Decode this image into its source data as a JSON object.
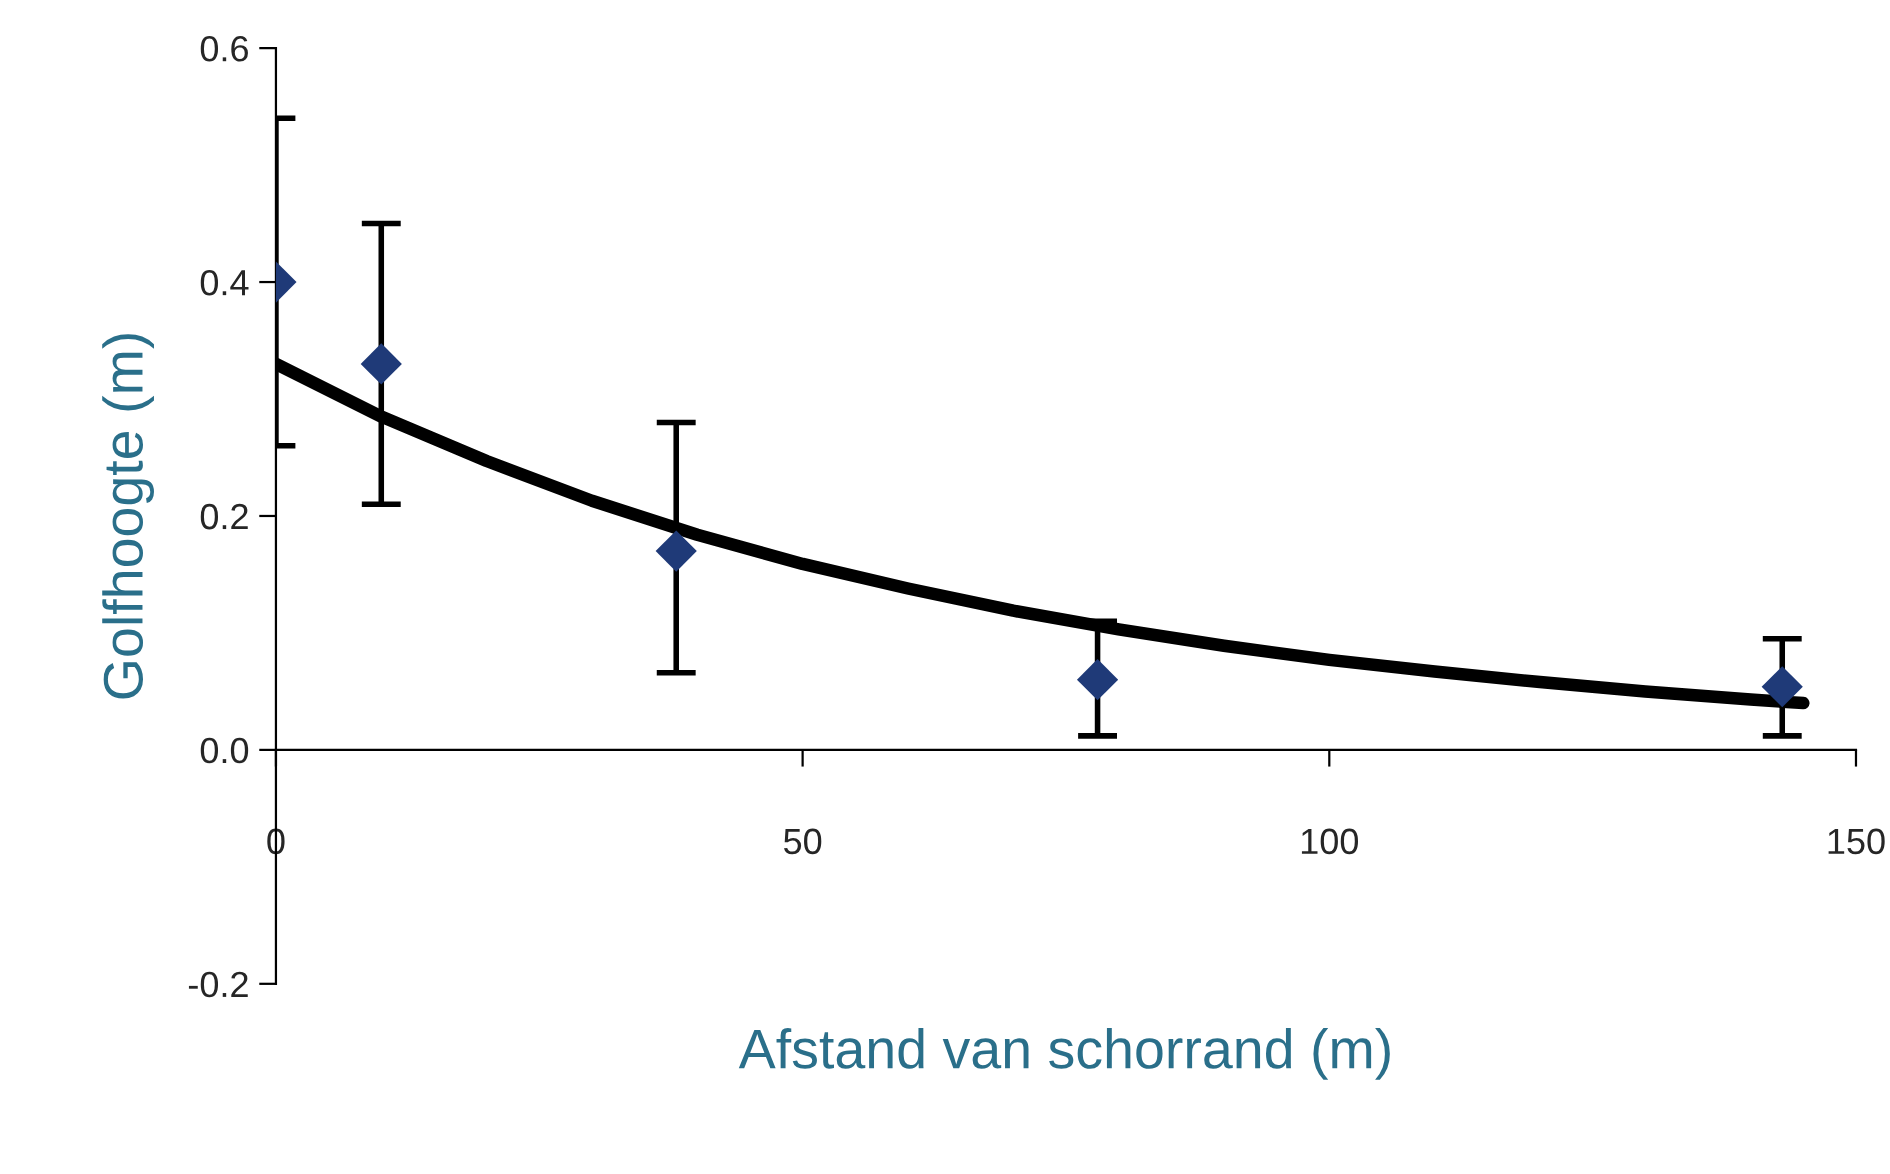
{
  "chart_data": {
    "type": "scatter",
    "xlabel": "Afstand van schorrand (m)",
    "ylabel": "Golfhoogte (m)",
    "xlim": [
      0,
      150
    ],
    "xticks": [
      0,
      50,
      100,
      150
    ],
    "ylim": [
      -0.2,
      0.6
    ],
    "yticks": [
      {
        "value": -0.2,
        "label": "-0.2"
      },
      {
        "value": 0,
        "label": "0.0"
      },
      {
        "value": 0.2,
        "label": "0.2"
      },
      {
        "value": 0.4,
        "label": "0.4"
      },
      {
        "value": 0.6,
        "label": "0.6"
      }
    ],
    "grid": false,
    "legend": false,
    "series": [
      {
        "marker": "diamond",
        "color": "#1f3a78",
        "x": [
          0,
          10,
          38,
          78,
          143
        ],
        "values": [
          0.4,
          0.33,
          0.17,
          0.06,
          0.054
        ],
        "errors": [
          [
            0.26,
            0.54
          ],
          [
            0.21,
            0.45
          ],
          [
            0.066,
            0.28
          ],
          [
            0.012,
            0.11
          ],
          [
            0.012,
            0.095
          ]
        ]
      },
      {
        "type": "line",
        "marker": "none",
        "line_style": "solid",
        "color": "#000000",
        "x": [
          0,
          10,
          20,
          30,
          40,
          50,
          60,
          70,
          80,
          90,
          100,
          110,
          120,
          130,
          140,
          145
        ],
        "values": [
          0.33,
          0.285,
          0.247,
          0.213,
          0.184,
          0.159,
          0.138,
          0.119,
          0.103,
          0.089,
          0.077,
          0.067,
          0.058,
          0.05,
          0.043,
          0.04
        ]
      }
    ]
  }
}
